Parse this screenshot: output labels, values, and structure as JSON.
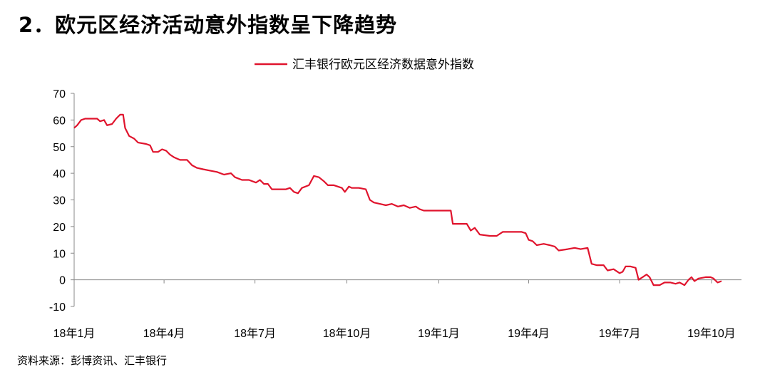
{
  "heading": "2．欧元区经济活动意外指数呈下降趋势",
  "source": "资料来源：彭博资讯、汇丰银行",
  "colors": {
    "series": "#E0142D",
    "axis": "#888888"
  },
  "chart_data": {
    "type": "line",
    "title": "",
    "xlabel": "",
    "ylabel": "",
    "ylim": [
      -10,
      70
    ],
    "yticks": [
      70,
      60,
      50,
      40,
      30,
      20,
      10,
      0,
      -10
    ],
    "xlim": [
      "2018-01-01",
      "2019-10-31"
    ],
    "xticks": [
      {
        "label": "18年1月",
        "date": "2018-01-01"
      },
      {
        "label": "18年4月",
        "date": "2018-04-01"
      },
      {
        "label": "18年7月",
        "date": "2018-07-01"
      },
      {
        "label": "18年10月",
        "date": "2018-10-01"
      },
      {
        "label": "19年1月",
        "date": "2019-01-01"
      },
      {
        "label": "19年4月",
        "date": "2019-04-01"
      },
      {
        "label": "19年7月",
        "date": "2019-07-01"
      },
      {
        "label": "19年10月",
        "date": "2019-10-01"
      }
    ],
    "grid": false,
    "legend_position": "top-center",
    "series": [
      {
        "name": "汇丰银行欧元区经济数据意外指数",
        "points": [
          [
            "2018-01-01",
            57
          ],
          [
            "2018-01-04",
            58
          ],
          [
            "2018-01-08",
            60
          ],
          [
            "2018-01-12",
            60.5
          ],
          [
            "2018-01-18",
            60.5
          ],
          [
            "2018-01-24",
            60.5
          ],
          [
            "2018-01-27",
            59.5
          ],
          [
            "2018-01-31",
            60
          ],
          [
            "2018-02-03",
            58
          ],
          [
            "2018-02-08",
            58.5
          ],
          [
            "2018-02-12",
            60.5
          ],
          [
            "2018-02-16",
            62
          ],
          [
            "2018-02-19",
            62
          ],
          [
            "2018-02-21",
            57
          ],
          [
            "2018-02-25",
            54
          ],
          [
            "2018-03-02",
            53
          ],
          [
            "2018-03-06",
            51.5
          ],
          [
            "2018-03-14",
            51
          ],
          [
            "2018-03-18",
            50.5
          ],
          [
            "2018-03-21",
            48
          ],
          [
            "2018-03-26",
            48
          ],
          [
            "2018-03-30",
            49
          ],
          [
            "2018-04-03",
            48.5
          ],
          [
            "2018-04-07",
            47
          ],
          [
            "2018-04-11",
            46
          ],
          [
            "2018-04-17",
            45
          ],
          [
            "2018-04-24",
            45
          ],
          [
            "2018-04-29",
            43
          ],
          [
            "2018-05-04",
            42
          ],
          [
            "2018-05-10",
            41.5
          ],
          [
            "2018-05-17",
            41
          ],
          [
            "2018-05-24",
            40.5
          ],
          [
            "2018-05-31",
            39.5
          ],
          [
            "2018-06-07",
            40
          ],
          [
            "2018-06-11",
            38.5
          ],
          [
            "2018-06-18",
            37.5
          ],
          [
            "2018-06-25",
            37.5
          ],
          [
            "2018-07-02",
            36.5
          ],
          [
            "2018-07-06",
            37.5
          ],
          [
            "2018-07-10",
            36
          ],
          [
            "2018-07-14",
            36
          ],
          [
            "2018-07-18",
            34
          ],
          [
            "2018-07-25",
            34
          ],
          [
            "2018-08-01",
            34
          ],
          [
            "2018-08-05",
            34.5
          ],
          [
            "2018-08-09",
            33
          ],
          [
            "2018-08-13",
            32.5
          ],
          [
            "2018-08-17",
            34.5
          ],
          [
            "2018-08-24",
            35.5
          ],
          [
            "2018-08-29",
            39
          ],
          [
            "2018-09-03",
            38.5
          ],
          [
            "2018-09-08",
            37
          ],
          [
            "2018-09-12",
            35.5
          ],
          [
            "2018-09-18",
            35.5
          ],
          [
            "2018-09-22",
            35
          ],
          [
            "2018-09-26",
            34.5
          ],
          [
            "2018-09-29",
            33
          ],
          [
            "2018-10-03",
            35
          ],
          [
            "2018-10-06",
            34.5
          ],
          [
            "2018-10-13",
            34.5
          ],
          [
            "2018-10-20",
            34
          ],
          [
            "2018-10-24",
            30
          ],
          [
            "2018-10-28",
            29
          ],
          [
            "2018-11-03",
            28.5
          ],
          [
            "2018-11-09",
            28
          ],
          [
            "2018-11-15",
            28.5
          ],
          [
            "2018-11-21",
            27.5
          ],
          [
            "2018-11-27",
            28
          ],
          [
            "2018-12-03",
            27
          ],
          [
            "2018-12-09",
            27.5
          ],
          [
            "2018-12-13",
            26.5
          ],
          [
            "2018-12-17",
            26
          ],
          [
            "2018-12-31",
            26
          ],
          [
            "2019-01-06",
            26
          ],
          [
            "2019-01-13",
            26
          ],
          [
            "2019-01-15",
            21
          ],
          [
            "2019-01-22",
            21
          ],
          [
            "2019-01-29",
            21
          ],
          [
            "2019-02-02",
            18.5
          ],
          [
            "2019-02-06",
            19.5
          ],
          [
            "2019-02-11",
            17
          ],
          [
            "2019-02-21",
            16.5
          ],
          [
            "2019-02-28",
            16.5
          ],
          [
            "2019-03-06",
            18
          ],
          [
            "2019-03-17",
            18
          ],
          [
            "2019-03-25",
            18
          ],
          [
            "2019-03-29",
            17.5
          ],
          [
            "2019-04-01",
            15
          ],
          [
            "2019-04-05",
            14.5
          ],
          [
            "2019-04-09",
            13
          ],
          [
            "2019-04-16",
            13.5
          ],
          [
            "2019-04-22",
            13
          ],
          [
            "2019-04-27",
            12.5
          ],
          [
            "2019-05-01",
            11
          ],
          [
            "2019-05-10",
            11.5
          ],
          [
            "2019-05-17",
            12
          ],
          [
            "2019-05-23",
            11.5
          ],
          [
            "2019-05-30",
            12
          ],
          [
            "2019-06-03",
            6
          ],
          [
            "2019-06-08",
            5.5
          ],
          [
            "2019-06-15",
            5.5
          ],
          [
            "2019-06-19",
            3.5
          ],
          [
            "2019-06-25",
            4
          ],
          [
            "2019-07-01",
            2.5
          ],
          [
            "2019-07-04",
            3
          ],
          [
            "2019-07-07",
            5
          ],
          [
            "2019-07-12",
            5
          ],
          [
            "2019-07-17",
            4.5
          ],
          [
            "2019-07-20",
            0
          ],
          [
            "2019-07-24",
            1
          ],
          [
            "2019-07-28",
            2
          ],
          [
            "2019-07-31",
            1
          ],
          [
            "2019-08-04",
            -2
          ],
          [
            "2019-08-10",
            -2
          ],
          [
            "2019-08-15",
            -1
          ],
          [
            "2019-08-21",
            -1
          ],
          [
            "2019-08-26",
            -1.5
          ],
          [
            "2019-08-30",
            -1
          ],
          [
            "2019-09-04",
            -2
          ],
          [
            "2019-09-08",
            0
          ],
          [
            "2019-09-11",
            1
          ],
          [
            "2019-09-14",
            -0.5
          ],
          [
            "2019-09-18",
            0.5
          ],
          [
            "2019-09-25",
            1
          ],
          [
            "2019-09-30",
            1
          ],
          [
            "2019-10-03",
            0.5
          ],
          [
            "2019-10-07",
            -1
          ],
          [
            "2019-10-11",
            -0.5
          ]
        ]
      }
    ]
  }
}
